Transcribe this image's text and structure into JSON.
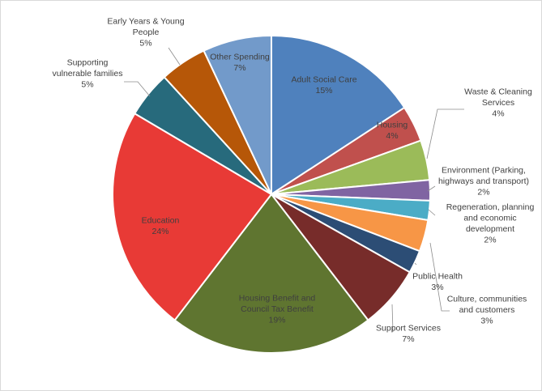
{
  "chart_data": {
    "type": "pie",
    "slices": [
      {
        "name": "Adult Social Care",
        "value": 15,
        "display": "15%",
        "color": "#4f81bd",
        "label_lines": [
          "Adult Social Care"
        ]
      },
      {
        "name": "Housing",
        "value": 4,
        "display": "4%",
        "color": "#c0504d",
        "label_lines": [
          "Housing"
        ]
      },
      {
        "name": "Waste & Cleaning Services",
        "value": 4,
        "display": "4%",
        "color": "#9bbb59",
        "label_lines": [
          "Waste & Cleaning",
          "Services"
        ]
      },
      {
        "name": "Environment (Parking, highways and transport)",
        "value": 2,
        "display": "2%",
        "color": "#8064a2",
        "label_lines": [
          "Environment (Parking,",
          "highways and transport)"
        ]
      },
      {
        "name": "Regeneration, planning and economic development",
        "value": 2,
        "display": "2%",
        "color": "#4bacc6",
        "label_lines": [
          "Regeneration, planning",
          "and economic",
          "development"
        ]
      },
      {
        "name": "Culture, communities and customers",
        "value": 3,
        "display": "3%",
        "color": "#f79646",
        "label_lines": [
          "Culture, communities",
          "and customers"
        ]
      },
      {
        "name": "Public Health",
        "value": 3,
        "display": "3%",
        "color": "#2c4d75",
        "label_lines": [
          "Public Health"
        ]
      },
      {
        "name": "Support Services",
        "value": 7,
        "display": "7%",
        "color": "#772c2a",
        "label_lines": [
          "Support Services"
        ]
      },
      {
        "name": "Housing Benefit and Council Tax Benefit",
        "value": 19,
        "display": "19%",
        "color": "#5f7530",
        "label_lines": [
          "Housing Benefit and",
          "Council Tax Benefit"
        ]
      },
      {
        "name": "Education",
        "value": 24,
        "display": "24%",
        "color": "#e83a36",
        "label_lines": [
          "Education"
        ]
      },
      {
        "name": "Supporting vulnerable families",
        "value": 5,
        "display": "5%",
        "color": "#276a7c",
        "label_lines": [
          "Supporting",
          "vulnerable families"
        ]
      },
      {
        "name": "Early Years & Young People",
        "value": 5,
        "display": "5%",
        "color": "#b65708",
        "label_lines": [
          "Early Years & Young",
          "People"
        ]
      },
      {
        "name": "Other Spending",
        "value": 7,
        "display": "7%",
        "color": "#729aca",
        "label_lines": [
          "Other Spending"
        ]
      }
    ]
  }
}
